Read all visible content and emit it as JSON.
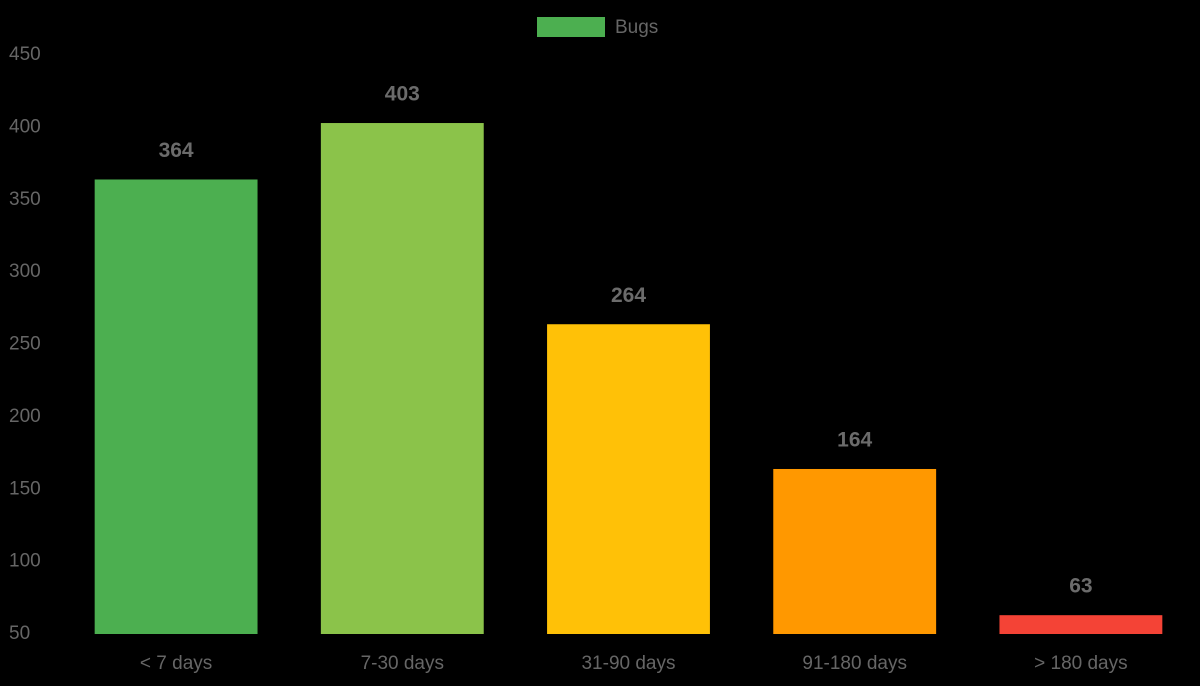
{
  "chart_data": {
    "type": "bar",
    "categories": [
      "< 7 days",
      "7-30 days",
      "31-90 days",
      "91-180 days",
      "> 180 days"
    ],
    "series": [
      {
        "name": "Bugs",
        "color": "#4caf50",
        "colors": [
          "#4caf50",
          "#8bc34a",
          "#ffc107",
          "#ff9800",
          "#f44336"
        ],
        "values": [
          364,
          403,
          264,
          164,
          63
        ]
      }
    ],
    "ylim": [
      50,
      450
    ],
    "yticks": [
      50,
      100,
      150,
      200,
      250,
      300,
      350,
      400,
      450
    ],
    "grid": false,
    "legend": "top"
  }
}
